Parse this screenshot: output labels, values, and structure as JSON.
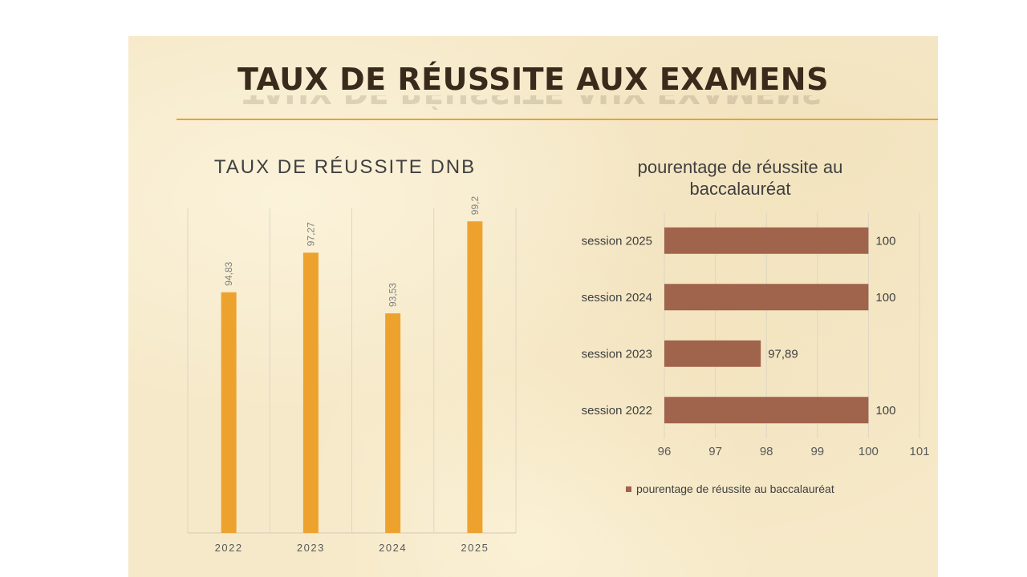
{
  "slide": {
    "title": "TAUX DE RÉUSSITE AUX EXAMENS",
    "colors": {
      "background": "#f6e9c9",
      "rule": "#e9a230",
      "title": "#3a2a1c"
    }
  },
  "chart_data": [
    {
      "type": "bar",
      "orientation": "vertical",
      "title": "TAUX DE RÉUSSITE DNB",
      "categories": [
        "2022",
        "2023",
        "2024",
        "2025"
      ],
      "values": [
        94.83,
        97.27,
        93.53,
        99.2
      ],
      "data_labels": [
        "94,83",
        "97,27",
        "93,53",
        "99,2"
      ],
      "xlabel": "",
      "ylabel": "",
      "ylim": [
        80,
        100
      ],
      "y_axis_visible": false,
      "grid": "vertical",
      "legend": "none",
      "color": "#eea22e"
    },
    {
      "type": "bar",
      "orientation": "horizontal",
      "title": "pourentage de réussite au baccalauréat",
      "categories": [
        "session 2025",
        "session 2024",
        "session 2023",
        "session 2022"
      ],
      "values": [
        100,
        100,
        97.89,
        100
      ],
      "data_labels": [
        "100",
        "100",
        "97,89",
        "100"
      ],
      "xlim": [
        96,
        101
      ],
      "xticks": [
        "96",
        "97",
        "98",
        "99",
        "100",
        "101"
      ],
      "grid": "vertical",
      "legend": "bottom",
      "series": [
        {
          "name": "pourentage de réussite au baccalauréat",
          "values": [
            100,
            100,
            97.89,
            100
          ]
        }
      ],
      "color": "#a0634c"
    }
  ]
}
